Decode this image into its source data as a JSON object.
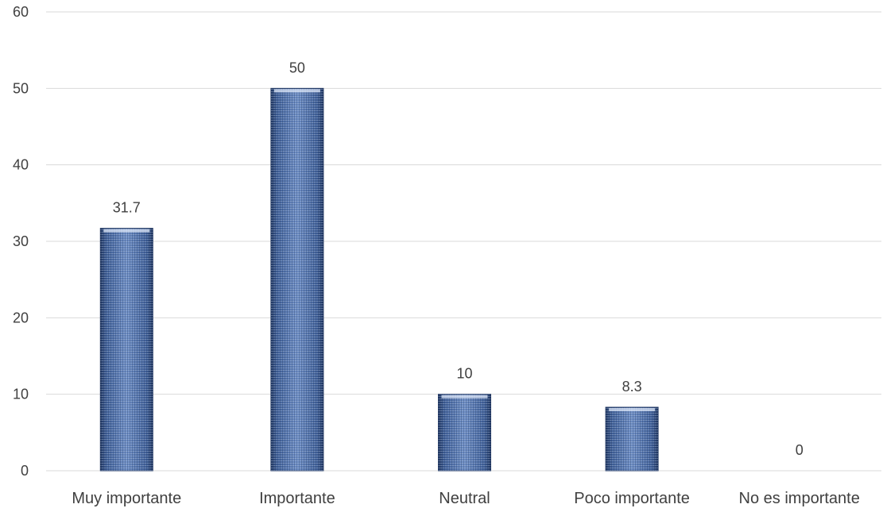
{
  "chart_data": {
    "type": "bar",
    "title": "",
    "xlabel": "",
    "ylabel": "",
    "categories": [
      "Muy importante",
      "Importante",
      "Neutral",
      "Poco importante",
      "No es importante"
    ],
    "values": [
      31.7,
      50,
      10,
      8.3,
      0
    ],
    "data_labels": [
      "31.7",
      "50",
      "10",
      "8.3",
      "0"
    ],
    "ylim": [
      0,
      60
    ],
    "yticks": [
      0,
      10,
      20,
      30,
      40,
      50,
      60
    ],
    "ytick_labels": [
      "0",
      "10",
      "20",
      "30",
      "40",
      "50",
      "60"
    ],
    "grid": true,
    "legend": "none",
    "bar_color": "#4f6fa8",
    "bar_edge_color": "#1f3560"
  }
}
